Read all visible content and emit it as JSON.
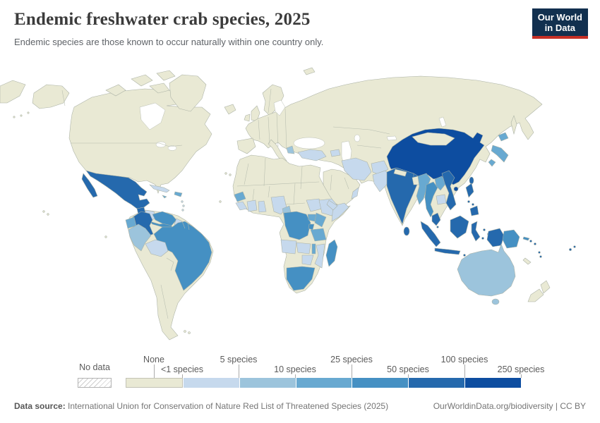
{
  "header": {
    "title": "Endemic freshwater crab species, 2025",
    "subtitle": "Endemic species are those known to occur naturally within one country only.",
    "logo_line1": "Our World",
    "logo_line2": "in Data",
    "logo_bg": "#12304f",
    "logo_accent": "#c62f25"
  },
  "footer": {
    "source_label": "Data source:",
    "source_text": " International Union for Conservation of Nature Red List of Threatened Species (2025)",
    "right_text": "OurWorldinData.org/biodiversity | CC BY"
  },
  "legend": {
    "no_data_label": "No data",
    "labels": [
      "None",
      "<1 species",
      "5 species",
      "10 species",
      "25 species",
      "50 species",
      "100 species",
      "250 species"
    ],
    "bin_colors": [
      "#e9e9d4",
      "#c6d9ed",
      "#9cc4dc",
      "#68a9d1",
      "#4590c3",
      "#2569ad",
      "#0d4da0"
    ]
  },
  "map": {
    "ocean_color": "#ffffff",
    "border_color": "#a9b0a4",
    "countries": {
      "chukotka-wrap": 0,
      "alaska": 0,
      "aleutian-islands": 0,
      "north-america": 0,
      "canada-arctic-islands": 0,
      "greenland": 0,
      "iceland": 0,
      "hawaii": 0,
      "galapagos": 0,
      "canary-islands": 0,
      "cape-verde": 0,
      "falkland-islands": 0,
      "south-america-base": 0,
      "scandinavia": 0,
      "uk": 0,
      "ireland": 0,
      "svalbard": 0,
      "eurasia": 0,
      "iberia": 0,
      "italy": 0,
      "arabia": 0,
      "mongolia": 0,
      "nepal": 0,
      "bangladesh": 0,
      "sakhalin": 0,
      "new-zealand": 0,
      "new-caledonia": 0,
      "cuba": 1,
      "honduras-nicaragua": 1,
      "lesser-antilles": 1,
      "guyana": 1,
      "bolivia": 1,
      "sierra-leone-liberia": 1,
      "cote-divoire": 1,
      "ghana": 1,
      "nigeria": 1,
      "south-sudan": 1,
      "ethiopia": 1,
      "somalia": 1,
      "angola": 1,
      "zambia": 1,
      "mozambique": 1,
      "zimbabwe": 1,
      "turkey": 1,
      "azerbaijan": 1,
      "iran": 1,
      "afghanistan": 1,
      "pakistan": 1,
      "yemen": 1,
      "oman": 1,
      "cambodia": 1,
      "greece": 2,
      "cameroon": 2,
      "peru": 2,
      "australia": 2,
      "tasmania": 2,
      "hispaniola": 3,
      "jamaica": 3,
      "ecuador": 3,
      "guinea": 3,
      "uganda": 3,
      "kenya": 3,
      "tanzania": 3,
      "malawi": 3,
      "japan": 3,
      "myanmar": 3,
      "laos": 3,
      "costa-rica-panama": 4,
      "venezuela": 4,
      "brazil": 4,
      "drc": 4,
      "rwanda-burundi": 4,
      "south-africa": 4,
      "madagascar": 4,
      "thailand": 4,
      "papua-new-guinea": 4,
      "mexico": 5,
      "guatemala": 5,
      "colombia": 5,
      "india": 5,
      "sri-lanka": 5,
      "vietnam": 5,
      "malaysia": 5,
      "sumatra": 5,
      "java": 5,
      "borneo": 5,
      "sulawesi": 5,
      "philippines": 5,
      "moluccas": 5,
      "lesser-sunda": 5,
      "indonesian-papua": 5,
      "taiwan": 5,
      "solomon-islands": 5,
      "vanuatu": 5,
      "fiji": 5,
      "china": 6
    }
  },
  "chart_data": {
    "type": "choropleth_map",
    "title": "Endemic freshwater crab species, 2025",
    "unit": "species",
    "legend_bins": [
      "None",
      "<1-5",
      "5-10",
      "10-25",
      "25-50",
      "50-100",
      "100-250"
    ],
    "values": {
      "China": "100-250",
      "India": "50-100",
      "Mexico": "50-100",
      "Colombia": "50-100",
      "Guatemala": "50-100",
      "Vietnam": "50-100",
      "Malaysia": "50-100",
      "Indonesia": "50-100",
      "Philippines": "50-100",
      "Sri Lanka": "50-100",
      "Taiwan": "50-100",
      "Thailand": "25-50",
      "Brazil": "25-50",
      "Venezuela": "25-50",
      "Democratic Republic of Congo": "25-50",
      "South Africa": "25-50",
      "Madagascar": "25-50",
      "Papua New Guinea": "25-50",
      "Panama": "25-50",
      "Japan": "10-25",
      "Myanmar": "10-25",
      "Laos": "10-25",
      "Ecuador": "10-25",
      "Kenya": "10-25",
      "Tanzania": "10-25",
      "Uganda": "10-25",
      "Guinea": "10-25",
      "Hispaniola": "10-25",
      "Peru": "5-10",
      "Australia": "5-10",
      "Cameroon": "5-10",
      "Greece": "5-10",
      "Cuba": "<1-5",
      "Bolivia": "<1-5",
      "Nigeria": "<1-5",
      "Ghana": "<1-5",
      "Ethiopia": "<1-5",
      "Somalia": "<1-5",
      "Angola": "<1-5",
      "Zambia": "<1-5",
      "Mozambique": "<1-5",
      "Zimbabwe": "<1-5",
      "Turkey": "<1-5",
      "Iran": "<1-5",
      "Afghanistan": "<1-5",
      "Pakistan": "<1-5",
      "Cambodia": "<1-5",
      "Guyana": "<1-5",
      "United States": "None",
      "Canada": "None",
      "Russia": "None",
      "Argentina": "None",
      "Chile": "None",
      "New Zealand": "None",
      "Egypt": "None",
      "Saudi Arabia": "None",
      "Mongolia": "None",
      "European countries": "None"
    }
  }
}
